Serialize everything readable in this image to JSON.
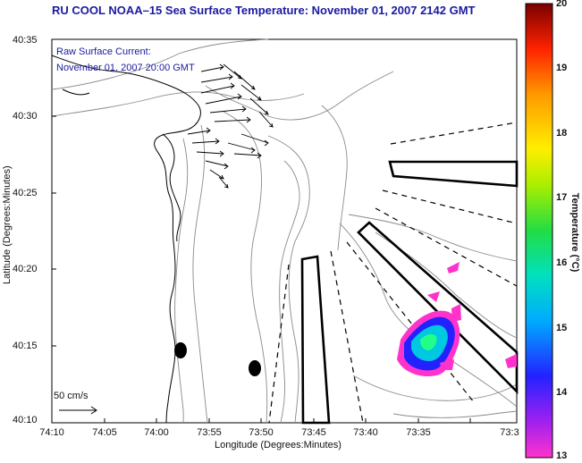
{
  "title": "RU COOL  NOAA–15  Sea Surface Temperature:  November 01, 2007 2142 GMT",
  "inset": {
    "line1": "Raw Surface Current:",
    "line2": "November 01, 2007 20:00 GMT"
  },
  "axes": {
    "xlabel": "Longitude (Degrees:Minutes)",
    "ylabel": "Latitude (Degrees:Minutes)",
    "xticks": [
      "74:10",
      "74:05",
      "74:00",
      "73:55",
      "73:50",
      "73:45",
      "73:40",
      "73:35",
      "73:3"
    ],
    "yticks": [
      "40:35",
      "40:30",
      "40:25",
      "40:20",
      "40:15",
      "40:10"
    ]
  },
  "scale": {
    "label": "50 cm/s"
  },
  "colorbar": {
    "label": "Temperature (°C)",
    "ticks": [
      "20",
      "19",
      "18",
      "17",
      "16",
      "15",
      "14",
      "13"
    ],
    "min": 13,
    "max": 20
  },
  "colors": {
    "title": "#1a1aa0",
    "coast": "#000000",
    "bathymetry": "#808080"
  }
}
